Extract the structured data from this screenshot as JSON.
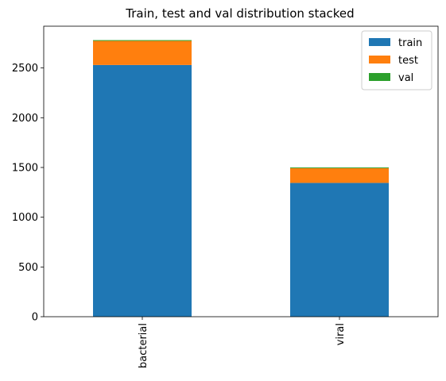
{
  "chart_data": {
    "type": "bar",
    "stacked": true,
    "title": "Train, test and val distribution stacked",
    "xlabel": "",
    "ylabel": "",
    "categories": [
      "bacterial",
      "viral"
    ],
    "series": [
      {
        "name": "train",
        "values": [
          2530,
          1345
        ],
        "color": "#1f77b4"
      },
      {
        "name": "test",
        "values": [
          242,
          148
        ],
        "color": "#ff7f0e"
      },
      {
        "name": "val",
        "values": [
          8,
          8
        ],
        "color": "#2ca02c"
      }
    ],
    "ylim": [
      0,
      2920
    ],
    "yticks": [
      0,
      500,
      1000,
      1500,
      2000,
      2500
    ],
    "x_tick_rotation": "vertical",
    "legend_position": "top-right",
    "grid": false
  }
}
